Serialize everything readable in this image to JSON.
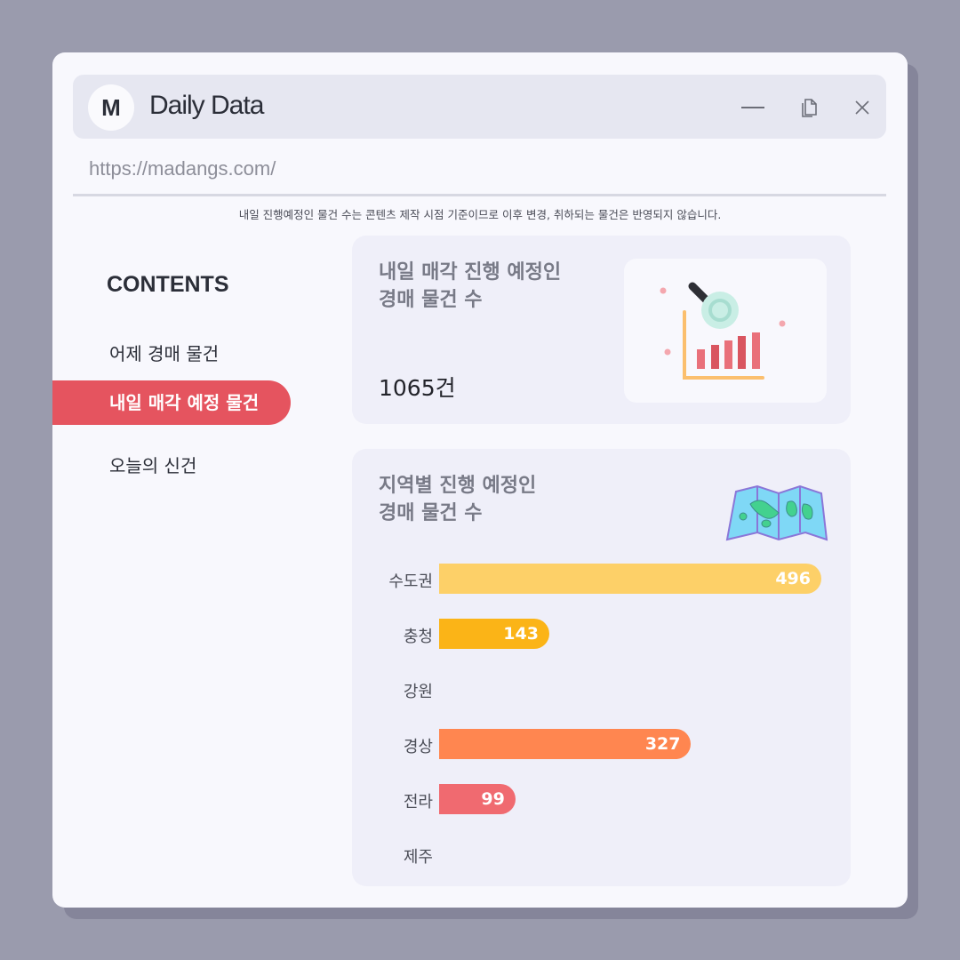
{
  "window": {
    "logo": "M",
    "title": "Daily Data",
    "url": "https://madangs.com/",
    "controls": [
      "minimize-icon",
      "copy-icon",
      "close-icon"
    ]
  },
  "notice": "내일 진행예정인 물건 수는 콘텐츠 제작 시점 기준이므로 이후 변경, 취하되는 물건은 반영되지 않습니다.",
  "sidebar": {
    "heading": "CONTENTS",
    "items": [
      {
        "label": "어제 경매 물건"
      },
      {
        "label": "내일 매각 예정 물건",
        "active": true
      },
      {
        "label": "오늘의 신건"
      }
    ]
  },
  "summary": {
    "title_line1": "내일 매각 진행 예정인",
    "title_line2": "경매 물건 수",
    "count": "1065건",
    "icon": "bar-chart-magnifier-icon"
  },
  "regions": {
    "title_line1": "지역별 진행 예정인",
    "title_line2": "경매 물건 수",
    "icon": "folded-map-icon"
  },
  "chart_data": {
    "type": "bar",
    "orientation": "horizontal",
    "categories": [
      "수도권",
      "충청",
      "강원",
      "경상",
      "전라",
      "제주"
    ],
    "values": [
      496,
      143,
      0,
      327,
      99,
      0
    ],
    "labels": [
      "496",
      "143",
      "",
      "327",
      "99",
      ""
    ],
    "colors": [
      "#fdd068",
      "#fbb417",
      "#fbb417",
      "#ff8650",
      "#f06a70",
      "#f06a70"
    ]
  },
  "colors": {
    "accent": "#e5545f"
  }
}
